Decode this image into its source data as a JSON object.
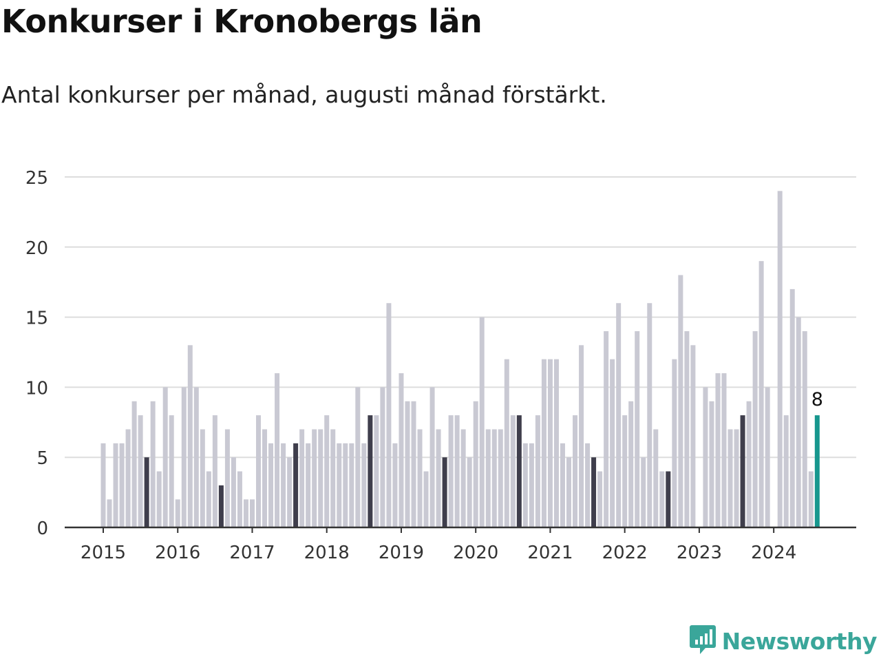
{
  "title": "Konkurser i Kronobergs län",
  "subtitle": "Antal konkurser per månad, augusti månad förstärkt.",
  "logo": {
    "text": "Newsworthy",
    "icon": "newsworthy-logo-icon",
    "color": "#3aa69a"
  },
  "colors": {
    "bar": "#c9c9d3",
    "highlight": "#3f3e4c",
    "latest": "#17978e",
    "grid": "#dddddd",
    "axis": "#333333"
  },
  "chart_data": {
    "type": "bar",
    "start": "2015-01",
    "frequency": "monthly",
    "highlight_month": "augusti",
    "values": [
      6,
      2,
      6,
      6,
      7,
      9,
      8,
      5,
      9,
      4,
      10,
      8,
      2,
      10,
      13,
      10,
      7,
      4,
      8,
      3,
      7,
      5,
      4,
      2,
      2,
      8,
      7,
      6,
      11,
      6,
      5,
      6,
      7,
      6,
      7,
      7,
      8,
      7,
      6,
      6,
      6,
      10,
      6,
      8,
      8,
      10,
      16,
      6,
      11,
      9,
      9,
      7,
      4,
      10,
      7,
      5,
      8,
      8,
      7,
      5,
      9,
      15,
      7,
      7,
      7,
      12,
      8,
      8,
      6,
      6,
      8,
      12,
      12,
      12,
      6,
      5,
      8,
      13,
      6,
      5,
      4,
      14,
      12,
      16,
      8,
      9,
      14,
      5,
      16,
      7,
      4,
      4,
      12,
      18,
      14,
      13,
      0,
      10,
      9,
      11,
      11,
      7,
      7,
      8,
      9,
      14,
      19,
      10,
      0,
      24,
      8,
      17,
      15,
      14,
      4,
      8
    ],
    "x_tick_labels": [
      "2015",
      "2016",
      "2017",
      "2018",
      "2019",
      "2020",
      "2021",
      "2022",
      "2023",
      "2024"
    ],
    "y_ticks": [
      "0",
      "5",
      "10",
      "15",
      "20",
      "25"
    ],
    "ylim": [
      0,
      25
    ],
    "last_value_label": "8",
    "xlabel": "",
    "ylabel": "",
    "grid": true
  }
}
